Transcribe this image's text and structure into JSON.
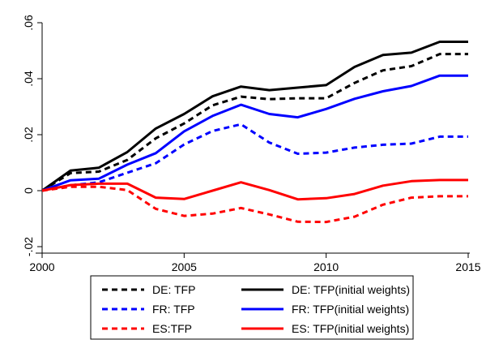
{
  "chart_data": {
    "type": "line",
    "title": "",
    "xlabel": "",
    "ylabel": "",
    "xlim": [
      2000,
      2015
    ],
    "ylim": [
      -0.02,
      0.06
    ],
    "x_ticks": [
      2000,
      2005,
      2010,
      2015
    ],
    "x_tick_labels": [
      "2000",
      "2005",
      "2010",
      "2015"
    ],
    "y_ticks": [
      -0.02,
      0,
      0.02,
      0.04,
      0.06
    ],
    "y_tick_labels": [
      "-.02",
      "0",
      ".02",
      ".04",
      ".06"
    ],
    "grid": false,
    "legend_position": "bottom",
    "x": [
      2000,
      2001,
      2002,
      2003,
      2004,
      2005,
      2006,
      2007,
      2008,
      2009,
      2010,
      2011,
      2012,
      2013,
      2014,
      2015
    ],
    "series": [
      {
        "name": "DE: TFP",
        "color": "#000000",
        "dash": "dashed",
        "values": [
          0,
          0.0063,
          0.0068,
          0.011,
          0.0187,
          0.024,
          0.0305,
          0.0336,
          0.0327,
          0.033,
          0.033,
          0.0385,
          0.043,
          0.0445,
          0.0488,
          0.0488
        ]
      },
      {
        "name": "DE: TFP(initial weights)",
        "color": "#000000",
        "dash": "solid",
        "values": [
          0,
          0.0072,
          0.0082,
          0.0138,
          0.0222,
          0.0274,
          0.0337,
          0.0372,
          0.0359,
          0.0368,
          0.0377,
          0.0442,
          0.0485,
          0.0493,
          0.0532,
          0.0532
        ]
      },
      {
        "name": "FR: TFP",
        "color": "#0000ff",
        "dash": "dashed",
        "values": [
          0,
          0.0019,
          0.003,
          0.0064,
          0.0098,
          0.0165,
          0.0213,
          0.0237,
          0.0172,
          0.0132,
          0.0136,
          0.0154,
          0.0164,
          0.0168,
          0.0193,
          0.0193
        ]
      },
      {
        "name": "FR: TFP(initial weights)",
        "color": "#0000ff",
        "dash": "solid",
        "values": [
          0,
          0.0037,
          0.0043,
          0.0093,
          0.0134,
          0.0212,
          0.0267,
          0.0307,
          0.0274,
          0.0262,
          0.0292,
          0.0328,
          0.0355,
          0.0374,
          0.0411,
          0.0411
        ]
      },
      {
        "name": "ES:TFP",
        "color": "#ff0000",
        "dash": "dashed",
        "values": [
          0,
          0.0014,
          0.0014,
          0.0002,
          -0.0065,
          -0.009,
          -0.0082,
          -0.0062,
          -0.0085,
          -0.0111,
          -0.0112,
          -0.0093,
          -0.005,
          -0.0025,
          -0.002,
          -0.002
        ]
      },
      {
        "name": "ES: TFP(initial weights)",
        "color": "#ff0000",
        "dash": "solid",
        "values": [
          0,
          0.002,
          0.0025,
          0.0025,
          -0.0025,
          -0.003,
          0,
          0.003,
          0.0002,
          -0.0031,
          -0.0027,
          -0.0012,
          0.0018,
          0.0034,
          0.0038,
          0.0038
        ]
      }
    ]
  }
}
